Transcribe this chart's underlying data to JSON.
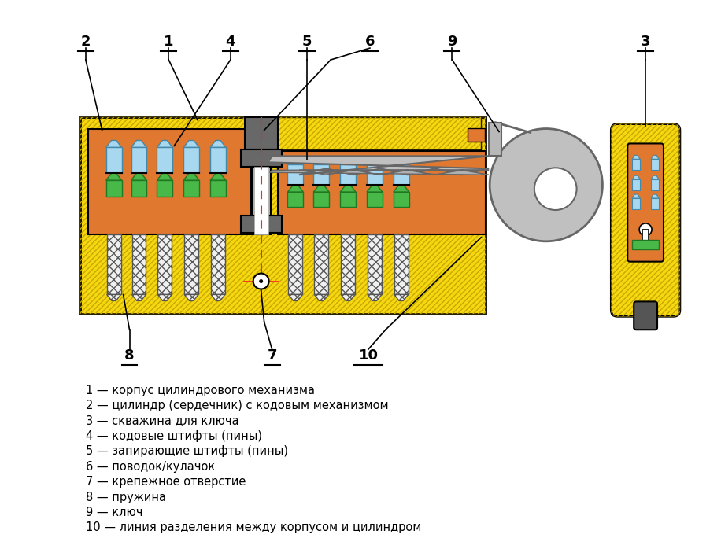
{
  "bg_color": "#ffffff",
  "body_yellow": "#f5d810",
  "body_hatch_color": "#c8a800",
  "cylinder_orange": "#e07830",
  "pin_blue": "#a8d8f0",
  "pin_green": "#48b848",
  "spring_fill": "#f0f0f0",
  "coupling_dark": "#686868",
  "coupling_light": "#b0b0b0",
  "key_gray": "#b8b8b8",
  "key_dark": "#888888",
  "shear_red": "#ff2222",
  "black": "#000000",
  "white": "#ffffff",
  "small_lock_body": "#f5d810",
  "small_lock_cyl": "#e07830",
  "legend_lines": [
    "1 — корпус цилиндрового механизма",
    "2 — цилиндр (сердечник) с кодовым механизмом",
    "3 — скважина для ключа",
    "4 — кодовые штифты (пины)",
    "5 — запирающие штифты (пины)",
    "6 — поводок/кулачок",
    "7 — крепежное отверстие",
    "8 — пружина",
    "9 — ключ",
    "10 — линия разделения между корпусом и цилиндром"
  ]
}
